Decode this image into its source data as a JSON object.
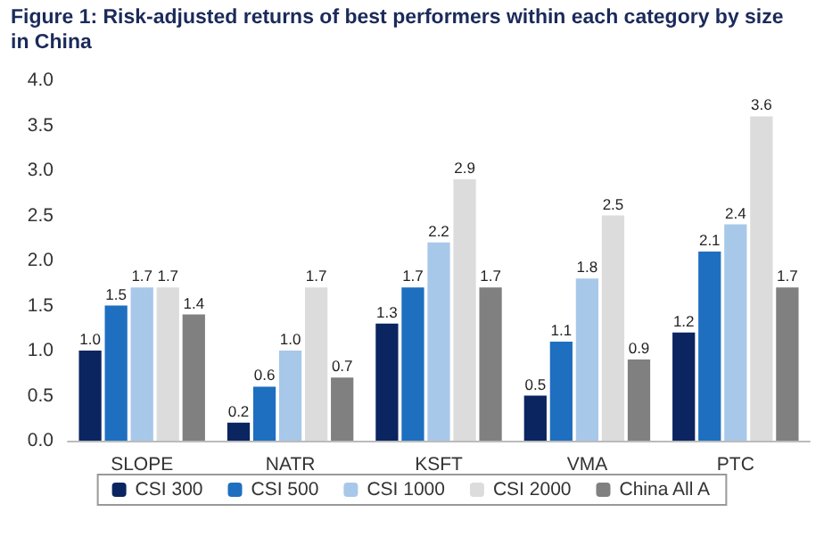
{
  "chart_data": {
    "type": "bar",
    "title": "Figure 1: Risk-adjusted returns of best performers within each category by size in China",
    "categories": [
      "SLOPE",
      "NATR",
      "KSFT",
      "VMA",
      "PTC"
    ],
    "series": [
      {
        "name": "CSI 300",
        "color": "#0b2561",
        "values": [
          1.0,
          0.2,
          1.3,
          0.5,
          1.2
        ],
        "value_labels": [
          "1.0",
          "0.2",
          "1.3",
          "0.5",
          "1.2"
        ]
      },
      {
        "name": "CSI 500",
        "color": "#1f6fc0",
        "values": [
          1.5,
          0.6,
          1.7,
          1.1,
          2.1
        ],
        "value_labels": [
          "1.5",
          "0.6",
          "1.7",
          "1.1",
          "2.1"
        ]
      },
      {
        "name": "CSI 1000",
        "color": "#a8c8ea",
        "values": [
          1.7,
          1.0,
          2.2,
          1.8,
          2.4
        ],
        "value_labels": [
          "1.7",
          "1.0",
          "2.2",
          "1.8",
          "2.4"
        ]
      },
      {
        "name": "CSI 2000",
        "color": "#dcdcdc",
        "values": [
          1.7,
          1.7,
          2.9,
          2.5,
          3.6
        ],
        "value_labels": [
          "1.7",
          "1.7",
          "2.9",
          "2.5",
          "3.6"
        ]
      },
      {
        "name": "China All A",
        "color": "#808080",
        "values": [
          1.4,
          0.7,
          1.7,
          0.9,
          1.7
        ],
        "value_labels": [
          "1.4",
          "0.7",
          "1.7",
          "0.9",
          "1.7"
        ]
      }
    ],
    "ylim": [
      0,
      4
    ],
    "yticks": [
      {
        "value": 0,
        "label": "0.0"
      },
      {
        "value": 0.5,
        "label": "0.5"
      },
      {
        "value": 1,
        "label": "1.0"
      },
      {
        "value": 1.5,
        "label": "1.5"
      },
      {
        "value": 2,
        "label": "2.0"
      },
      {
        "value": 2.5,
        "label": "2.5"
      },
      {
        "value": 3,
        "label": "3.0"
      },
      {
        "value": 3.5,
        "label": "3.5"
      },
      {
        "value": 4,
        "label": "4.0"
      }
    ],
    "grid": false,
    "legend": "bottom"
  }
}
